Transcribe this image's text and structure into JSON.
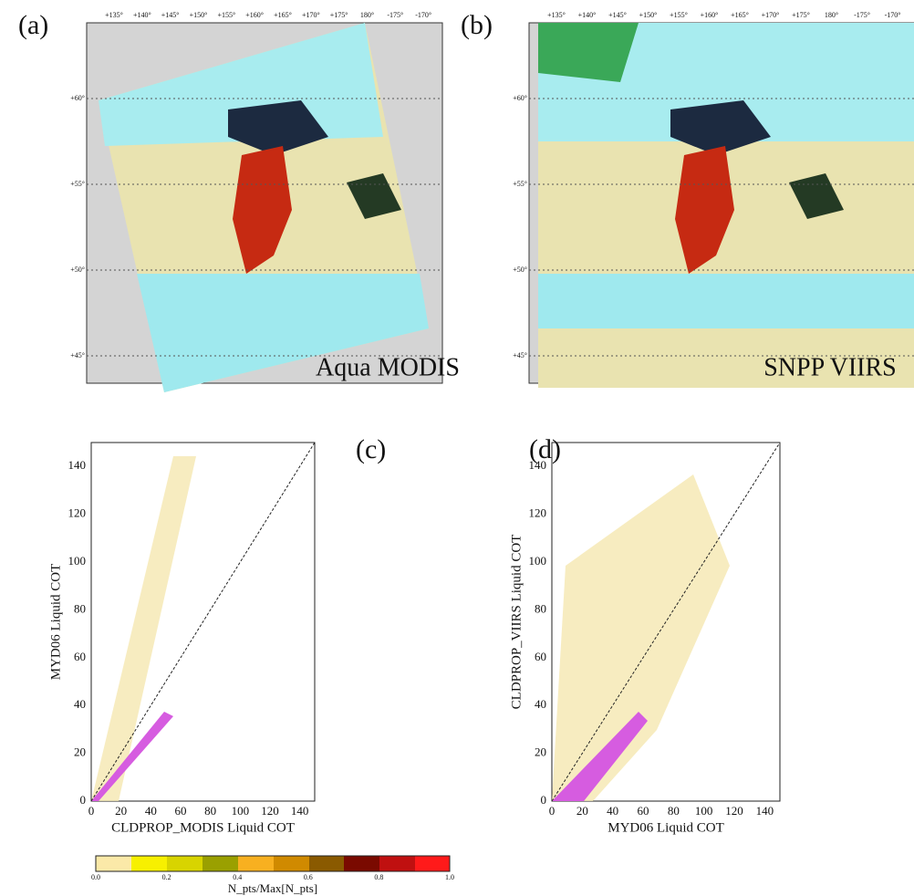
{
  "maps": [
    {
      "label": "(a)",
      "title": "Aqua MODIS",
      "lon_labels": [
        "+135°",
        "+140°",
        "+145°",
        "+150°",
        "+155°",
        "+160°",
        "+165°",
        "+170°",
        "+175°",
        "180°",
        "-175°",
        "-170°"
      ],
      "lat_labels": [
        "+60°",
        "+55°",
        "+50°",
        "+45°"
      ]
    },
    {
      "label": "(b)",
      "title": "SNPP VIIRS",
      "lon_labels": [
        "+135°",
        "+140°",
        "+145°",
        "+150°",
        "+155°",
        "+160°",
        "+165°",
        "+170°",
        "+175°",
        "180°",
        "-175°",
        "-170°"
      ],
      "lat_labels": [
        "+60°",
        "+55°",
        "+50°",
        "+45°"
      ]
    }
  ],
  "scatter": [
    {
      "label": "(c)",
      "xlabel": "CLDPROP_MODIS Liquid COT",
      "ylabel": "MYD06 Liquid COT",
      "ticks": [
        "0",
        "20",
        "40",
        "60",
        "80",
        "100",
        "120",
        "140"
      ]
    },
    {
      "label": "(d)",
      "xlabel": "MYD06 Liquid COT",
      "ylabel": "CLDPROP_VIIRS Liquid COT",
      "ticks": [
        "0",
        "20",
        "40",
        "60",
        "80",
        "100",
        "120",
        "140"
      ]
    }
  ],
  "colorbar": {
    "ticks": [
      "0.0",
      "0.2",
      "0.4",
      "0.6",
      "0.8",
      "1.0"
    ],
    "label": "N_pts/Max[N_pts]"
  }
}
